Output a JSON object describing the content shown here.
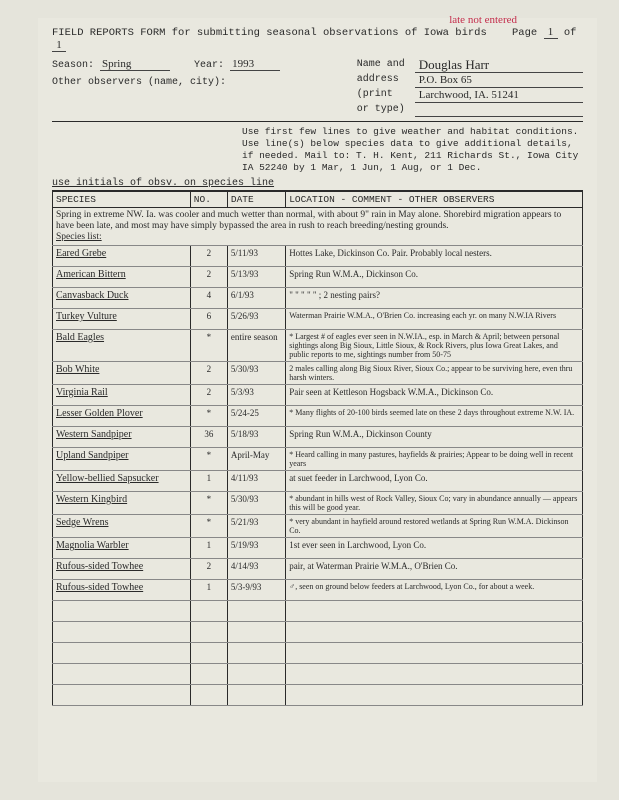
{
  "redNote": "late not entered",
  "title": "FIELD REPORTS FORM for submitting seasonal observations of Iowa birds",
  "pageLabel": "Page",
  "pageCur": "1",
  "pageOf": "of",
  "pageTot": "1",
  "seasonLbl": "Season:",
  "season": "Spring",
  "yearLbl": "Year:",
  "year": "1993",
  "obsvLbl": "Other observers (name, city):",
  "nameLbl": "Name and",
  "addrLbl1": "address",
  "addrLbl2": "(print",
  "addrLbl3": "or type)",
  "name": "Douglas Harr",
  "addr1": "P.O. Box 65",
  "addr2": "Larchwood, IA. 51241",
  "instructions": "Use first few lines to give weather and habitat conditions. Use line(s) below species data to give additional details, if needed. Mail to: T. H. Kent, 211 Richards St., Iowa City IA 52240 by 1 Mar, 1 Jun, 1 Aug, or 1 Dec.",
  "preInst": "use initials of obsv. on species line",
  "hdr": {
    "sp": "SPECIES",
    "no": "NO.",
    "dt": "DATE",
    "loc": "LOCATION - COMMENT - OTHER OBSERVERS"
  },
  "intro": "Spring in extreme NW. Ia. was cooler and much wetter than normal, with about 9\" rain in May alone. Shorebird migration appears to have been late, and most may have simply bypassed the area in rush to reach breeding/nesting grounds.",
  "speciesListLbl": "Species list:",
  "rows": [
    {
      "sp": "Eared Grebe",
      "no": "2",
      "dt": "5/11/93",
      "loc": "Hottes Lake, Dickinson Co. Pair. Probably local nesters."
    },
    {
      "sp": "American Bittern",
      "no": "2",
      "dt": "5/13/93",
      "loc": "Spring Run W.M.A., Dickinson Co."
    },
    {
      "sp": "Canvasback Duck",
      "no": "4",
      "dt": "6/1/93",
      "loc": "\"   \"   \"   \"   \" ; 2 nesting pairs?"
    },
    {
      "sp": "Turkey Vulture",
      "no": "6",
      "dt": "5/26/93",
      "loc": "Waterman Prairie W.M.A., O'Brien Co. increasing each yr. on many N.W.IA Rivers"
    },
    {
      "sp": "Bald Eagles",
      "no": "*",
      "dt": "entire season",
      "loc": "* Largest # of eagles ever seen in N.W.IA., esp. in March & April; between personal sightings along Big Sioux, Little Sioux, & Rock Rivers, plus Iowa Great Lakes, and public reports to me, sightings number from 50-75"
    },
    {
      "sp": "Bob White",
      "no": "2",
      "dt": "5/30/93",
      "loc": "2 males calling along Big Sioux River, Sioux Co.; appear to be surviving here, even thru harsh winters."
    },
    {
      "sp": "Virginia Rail",
      "no": "2",
      "dt": "5/3/93",
      "loc": "Pair seen at Kettleson Hogsback W.M.A., Dickinson Co."
    },
    {
      "sp": "Lesser Golden Plover",
      "no": "*",
      "dt": "5/24-25",
      "loc": "* Many flights of 20-100 birds seemed late on these 2 days throughout extreme N.W. IA."
    },
    {
      "sp": "Western Sandpiper",
      "no": "36",
      "dt": "5/18/93",
      "loc": "Spring Run W.M.A., Dickinson County"
    },
    {
      "sp": "Upland Sandpiper",
      "no": "*",
      "dt": "April-May",
      "loc": "* Heard calling in many pastures, hayfields & prairies; Appear to be doing well in recent years"
    },
    {
      "sp": "Yellow-bellied Sapsucker",
      "no": "1",
      "dt": "4/11/93",
      "loc": "at suet feeder in Larchwood, Lyon Co."
    },
    {
      "sp": "Western Kingbird",
      "no": "*",
      "dt": "5/30/93",
      "loc": "* abundant in hills west of Rock Valley, Sioux Co; vary in abundance annually — appears this will be good year."
    },
    {
      "sp": "Sedge Wrens",
      "no": "*",
      "dt": "5/21/93",
      "loc": "* very abundant in hayfield around restored wetlands at Spring Run W.M.A. Dickinson Co."
    },
    {
      "sp": "Magnolia Warbler",
      "no": "1",
      "dt": "5/19/93",
      "loc": "1st ever seen in Larchwood, Lyon Co."
    },
    {
      "sp": "Rufous-sided Towhee",
      "no": "2",
      "dt": "4/14/93",
      "loc": "pair, at Waterman Prairie W.M.A., O'Brien Co."
    },
    {
      "sp": "Rufous-sided Towhee",
      "no": "1",
      "dt": "5/3-9/93",
      "loc": "♂, seen on ground below feeders at Larchwood, Lyon Co., for about a week."
    }
  ],
  "blankRows": 5,
  "styling": {
    "background": "#e5e4db",
    "ink": "#2a2a2a",
    "red": "#c32b4a",
    "font_typed": "Courier New",
    "font_hand": "Comic Sans MS"
  }
}
